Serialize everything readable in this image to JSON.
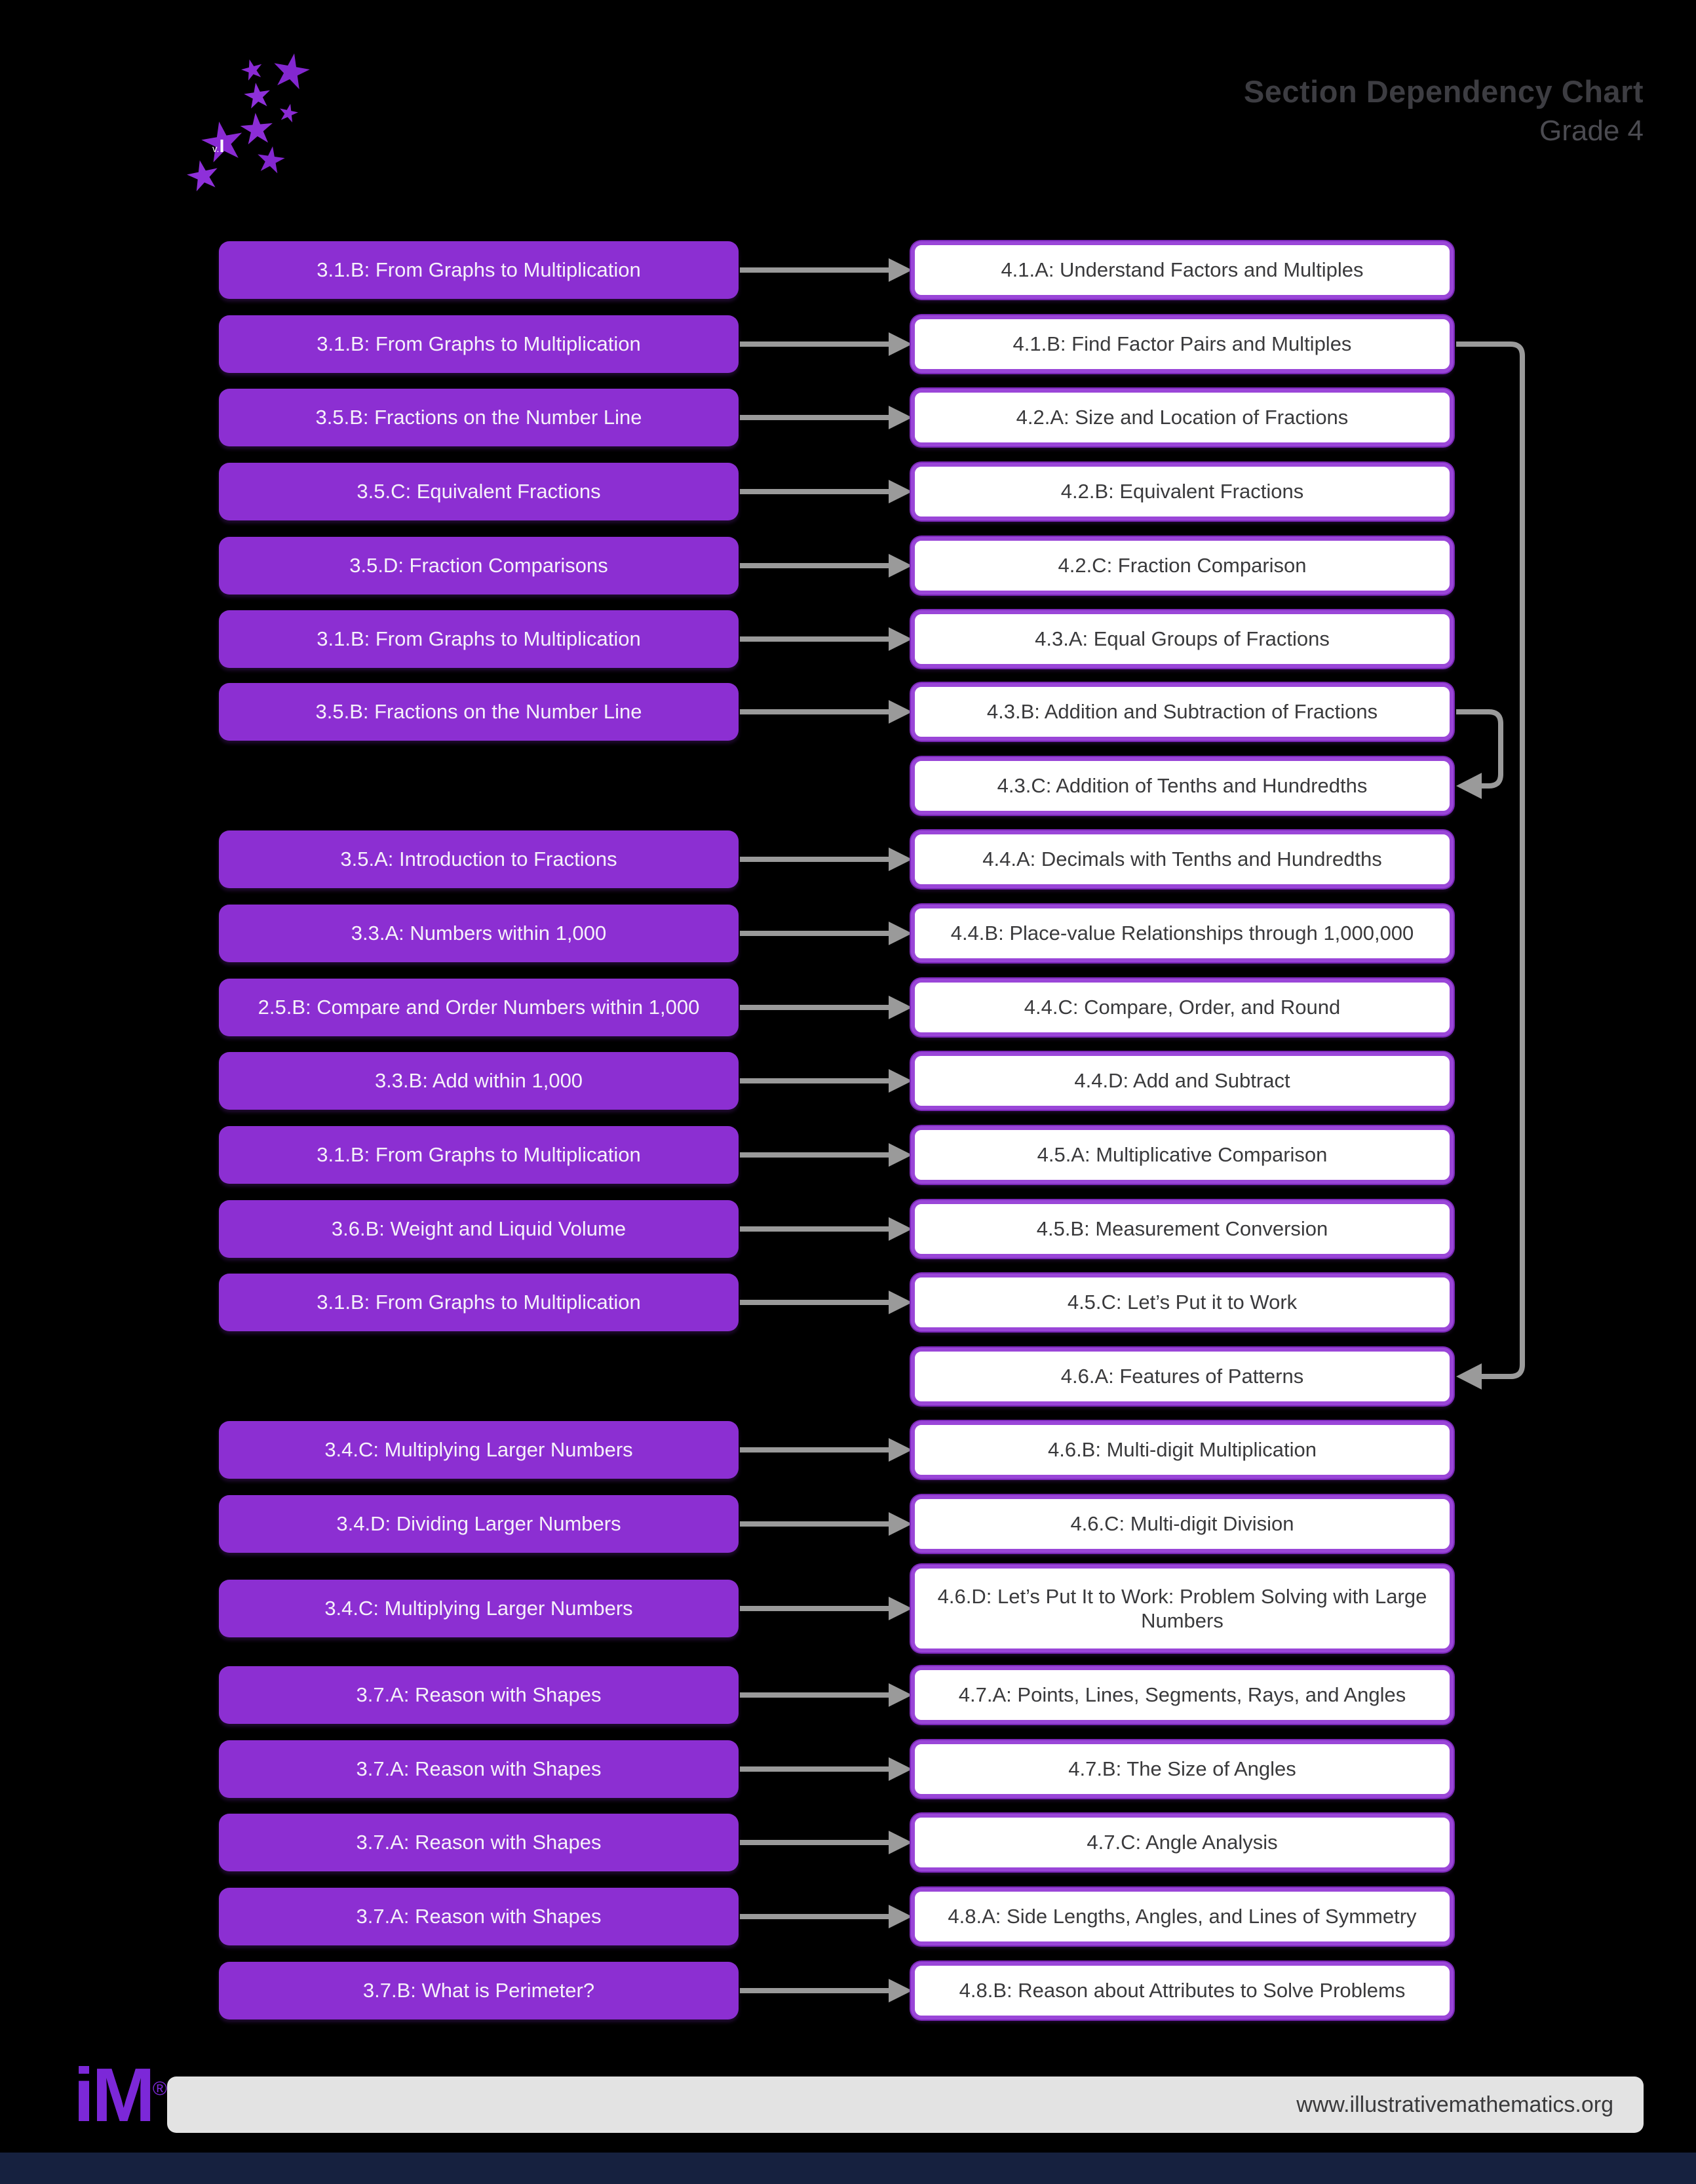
{
  "header": {
    "title": "Section Dependency Chart",
    "subtitle": "Grade 4",
    "logo_version_label": "v.I"
  },
  "rows": [
    {
      "source": "3.1.B: From Graphs to Multiplication",
      "target": "4.1.A: Understand Factors and Multiples"
    },
    {
      "source": "3.1.B: From Graphs to Multiplication",
      "target": "4.1.B: Find Factor Pairs and Multiples"
    },
    {
      "source": "3.5.B: Fractions on the Number Line",
      "target": "4.2.A: Size and Location of Fractions"
    },
    {
      "source": "3.5.C: Equivalent Fractions",
      "target": "4.2.B: Equivalent Fractions"
    },
    {
      "source": "3.5.D: Fraction Comparisons",
      "target": "4.2.C: Fraction Comparison"
    },
    {
      "source": "3.1.B: From Graphs to Multiplication",
      "target": "4.3.A: Equal Groups of Fractions"
    },
    {
      "source": "3.5.B: Fractions on the Number Line",
      "target": "4.3.B: Addition and Subtraction of Fractions"
    },
    {
      "source": null,
      "target": "4.3.C: Addition of Tenths and Hundredths"
    },
    {
      "source": "3.5.A: Introduction to Fractions",
      "target": "4.4.A: Decimals with Tenths and Hundredths"
    },
    {
      "source": "3.3.A: Numbers within 1,000",
      "target": "4.4.B: Place-value Relationships through 1,000,000"
    },
    {
      "source": "2.5.B: Compare and Order Numbers within 1,000",
      "target": "4.4.C: Compare, Order, and Round"
    },
    {
      "source": "3.3.B: Add within 1,000",
      "target": "4.4.D: Add and Subtract"
    },
    {
      "source": "3.1.B: From Graphs to Multiplication",
      "target": "4.5.A: Multiplicative Comparison"
    },
    {
      "source": "3.6.B: Weight and Liquid Volume",
      "target": "4.5.B: Measurement Conversion"
    },
    {
      "source": "3.1.B: From Graphs to Multiplication",
      "target": "4.5.C: Let’s Put it to Work"
    },
    {
      "source": null,
      "target": "4.6.A: Features of Patterns"
    },
    {
      "source": "3.4.C: Multiplying Larger Numbers",
      "target": "4.6.B: Multi-digit Multiplication"
    },
    {
      "source": "3.4.D: Dividing Larger Numbers",
      "target": "4.6.C: Multi-digit Division"
    },
    {
      "source": "3.4.C: Multiplying Larger Numbers",
      "target": "4.6.D: Let’s Put It to Work: Problem Solving with Large Numbers",
      "tall": true
    },
    {
      "source": "3.7.A: Reason with Shapes",
      "target": "4.7.A: Points, Lines, Segments, Rays, and Angles"
    },
    {
      "source": "3.7.A: Reason with Shapes",
      "target": "4.7.B: The Size of Angles"
    },
    {
      "source": "3.7.A: Reason with Shapes",
      "target": "4.7.C: Angle Analysis"
    },
    {
      "source": "3.7.A: Reason with Shapes",
      "target": "4.8.A: Side Lengths, Angles, and Lines of Symmetry"
    },
    {
      "source": "3.7.B: What is Perimeter?",
      "target": "4.8.B: Reason about Attributes to Solve Problems"
    }
  ],
  "long_connectors": [
    {
      "from": "4.1.B: Find Factor Pairs and Multiples",
      "to": "4.6.A: Features of Patterns"
    },
    {
      "from": "4.3.B: Addition and Subtraction of Fractions",
      "to": "4.3.C: Addition of Tenths and Hundredths"
    }
  ],
  "footer": {
    "logo_text": "iM",
    "registered_mark": "®",
    "url": "www.illustrativemathematics.org"
  },
  "colors": {
    "background": "#000000",
    "source_box_purple": "#8c2fd2",
    "target_box_border_purple": "#9a46d8",
    "arrow_gray": "#9a9a9a",
    "title_gray": "#3d3d42",
    "footer_bar_gray": "#e3e3e3",
    "bottom_bar_navy": "#16213f",
    "box_text_dark": "#3a3a3c"
  }
}
